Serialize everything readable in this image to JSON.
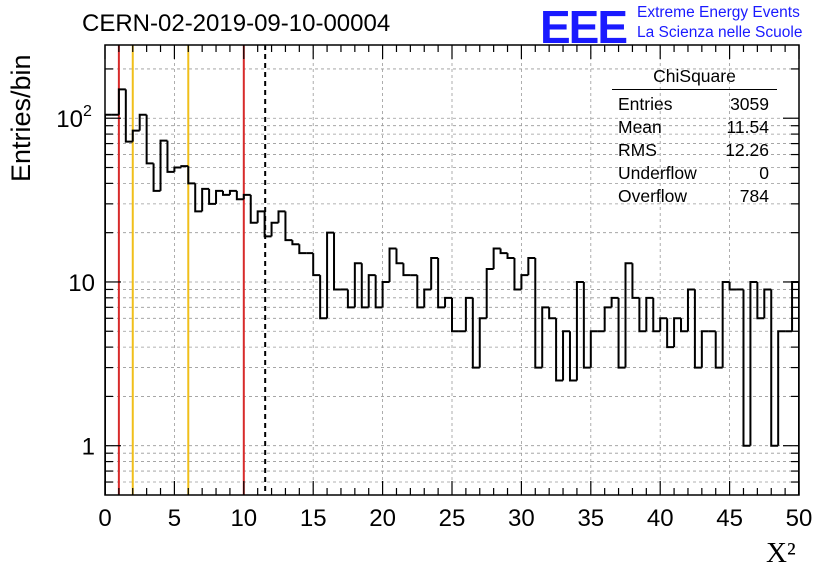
{
  "title": "CERN-02-2019-09-10-00004",
  "logo": {
    "letters": "EEE",
    "line1": "Extreme Energy Events",
    "line2": "La Scienza nelle Scuole",
    "color": "#1a1aff"
  },
  "stats_box": {
    "title": "ChiSquare",
    "rows": [
      {
        "label": "Entries",
        "value": "3059"
      },
      {
        "label": "Mean",
        "value": "11.54"
      },
      {
        "label": "RMS",
        "value": "12.26"
      },
      {
        "label": "Underflow",
        "value": "0"
      },
      {
        "label": "Overflow",
        "value": "784"
      }
    ]
  },
  "chart_data": {
    "type": "histogram",
    "ylabel": "Entries/bin",
    "xlabel": "X²",
    "xlim": [
      0,
      50
    ],
    "ylim": [
      0.5,
      280
    ],
    "y_scale": "log",
    "grid": true,
    "x_ticks": [
      "0",
      "5",
      "10",
      "15",
      "20",
      "25",
      "30",
      "35",
      "40",
      "45",
      "50"
    ],
    "y_ticks": [
      {
        "value": 1,
        "label": "1"
      },
      {
        "value": 10,
        "label": "10"
      },
      {
        "value": 100,
        "label": "10",
        "exponent": "2"
      }
    ],
    "bin_edges_start": 0,
    "bin_width": 0.5,
    "counts": [
      105,
      105,
      150,
      72,
      84,
      105,
      53,
      36,
      73,
      47,
      50,
      51,
      40,
      27,
      37,
      30,
      36,
      34,
      36,
      32,
      34,
      23,
      27,
      19,
      23,
      27,
      18,
      17,
      15,
      15,
      11,
      6,
      20,
      9,
      9,
      7,
      13,
      7,
      11,
      7,
      10,
      16,
      13,
      11,
      11,
      7,
      9,
      14,
      7,
      8,
      5,
      5,
      8,
      3,
      6,
      12,
      16,
      15,
      14,
      9,
      11,
      14,
      3,
      7,
      6,
      2.5,
      5,
      2.5,
      10,
      3,
      5,
      5,
      7,
      8,
      3,
      13,
      8,
      5,
      8,
      5,
      6,
      4,
      6,
      5,
      9,
      3,
      5,
      5,
      3,
      10,
      9,
      9,
      1,
      10,
      6,
      9,
      1,
      5,
      5,
      10
    ],
    "vertical_lines": [
      {
        "x": 1,
        "color": "#d72a2a",
        "style": "solid"
      },
      {
        "x": 2,
        "color": "#f0bf1a",
        "style": "solid"
      },
      {
        "x": 6,
        "color": "#f0bf1a",
        "style": "solid"
      },
      {
        "x": 10,
        "color": "#d72a2a",
        "style": "solid"
      },
      {
        "x": 11.54,
        "color": "#000000",
        "style": "dashed"
      }
    ]
  }
}
